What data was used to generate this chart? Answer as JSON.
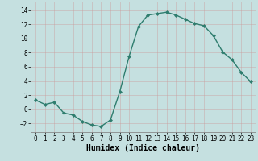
{
  "x": [
    0,
    1,
    2,
    3,
    4,
    5,
    6,
    7,
    8,
    9,
    10,
    11,
    12,
    13,
    14,
    15,
    16,
    17,
    18,
    19,
    20,
    21,
    22,
    23
  ],
  "y": [
    1.3,
    0.7,
    1.0,
    -0.5,
    -0.8,
    -1.7,
    -2.2,
    -2.4,
    -1.5,
    2.5,
    7.5,
    11.7,
    13.3,
    13.5,
    13.7,
    13.3,
    12.7,
    12.1,
    11.8,
    10.4,
    8.1,
    7.0,
    5.2,
    3.9
  ],
  "line_color": "#2e7d6e",
  "marker": "D",
  "marker_size": 2.0,
  "line_width": 1.0,
  "bg_color": "#c5e0e0",
  "grid_color": "#b0cccc",
  "grid_color_minor": "#d4e8e8",
  "xlabel": "Humidex (Indice chaleur)",
  "xlabel_fontsize": 7,
  "xlim": [
    -0.5,
    23.5
  ],
  "ylim": [
    -3.2,
    15.2
  ],
  "yticks": [
    -2,
    0,
    2,
    4,
    6,
    8,
    10,
    12,
    14
  ],
  "xticks": [
    0,
    1,
    2,
    3,
    4,
    5,
    6,
    7,
    8,
    9,
    10,
    11,
    12,
    13,
    14,
    15,
    16,
    17,
    18,
    19,
    20,
    21,
    22,
    23
  ],
  "tick_fontsize": 5.5,
  "xlabel_bold": true
}
